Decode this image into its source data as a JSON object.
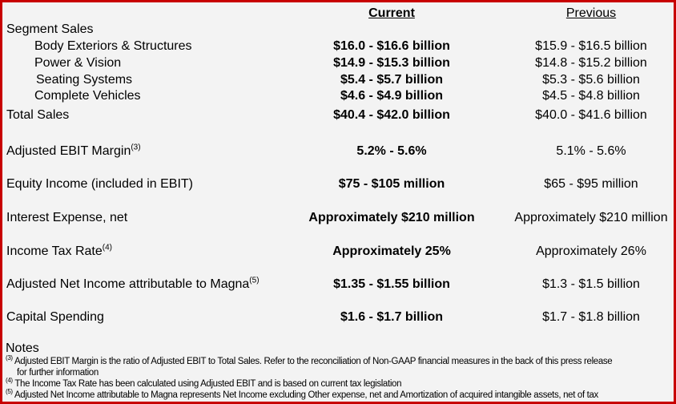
{
  "header": {
    "current": "Current",
    "previous": "Previous"
  },
  "section_label": "Segment Sales",
  "segments": [
    {
      "label": "Body Exteriors & Structures",
      "current": "$16.0 - $16.6 billion",
      "previous": "$15.9 - $16.5 billion"
    },
    {
      "label": "Power & Vision",
      "current": "$14.9 - $15.3 billion",
      "previous": "$14.8 - $15.2 billion"
    },
    {
      "label": "Seating Systems",
      "current": "$5.4 - $5.7 billion",
      "previous": "$5.3 - $5.6 billion"
    },
    {
      "label": "Complete Vehicles",
      "current": "$4.6 - $4.9 billion",
      "previous": "$4.5 - $4.8 billion"
    }
  ],
  "rows": [
    {
      "label": "Total Sales",
      "sup": "",
      "current": "$40.4 - $42.0 billion",
      "previous": "$40.0 - $41.6 billion"
    },
    {
      "label": "Adjusted EBIT Margin",
      "sup": "(3)",
      "current": "5.2% - 5.6%",
      "previous": "5.1% - 5.6%"
    },
    {
      "label": "Equity Income (included in EBIT)",
      "sup": "",
      "current": "$75 - $105 million",
      "previous": "$65 - $95 million"
    },
    {
      "label": "Interest Expense, net",
      "sup": "",
      "current": "Approximately $210 million",
      "previous": "Approximately $210 million"
    },
    {
      "label": "Income Tax Rate",
      "sup": "(4)",
      "current": "Approximately 25%",
      "previous": "Approximately 26%"
    },
    {
      "label": "Adjusted Net Income attributable to Magna",
      "sup": "(5)",
      "current": "$1.35 - $1.55 billion",
      "previous": "$1.3 - $1.5 billion"
    },
    {
      "label": "Capital Spending",
      "sup": "",
      "current": "$1.6 - $1.7 billion",
      "previous": "$1.7 - $1.8 billion"
    }
  ],
  "notes": {
    "title": "Notes",
    "items": [
      {
        "sup": "(3)",
        "text": "Adjusted EBIT Margin is the ratio of Adjusted EBIT to Total Sales. Refer to the reconciliation of Non-GAAP financial measures in the back of this press release",
        "cont": "for further information"
      },
      {
        "sup": "(4)",
        "text": "The Income Tax Rate has been calculated using Adjusted EBIT and is based on current tax legislation"
      },
      {
        "sup": "(5)",
        "text": "Adjusted Net Income attributable to Magna represents Net Income excluding Other expense, net and Amortization of acquired intangible assets, net of tax"
      }
    ]
  },
  "colors": {
    "border": "#c80000",
    "background": "#f3f3f3"
  }
}
